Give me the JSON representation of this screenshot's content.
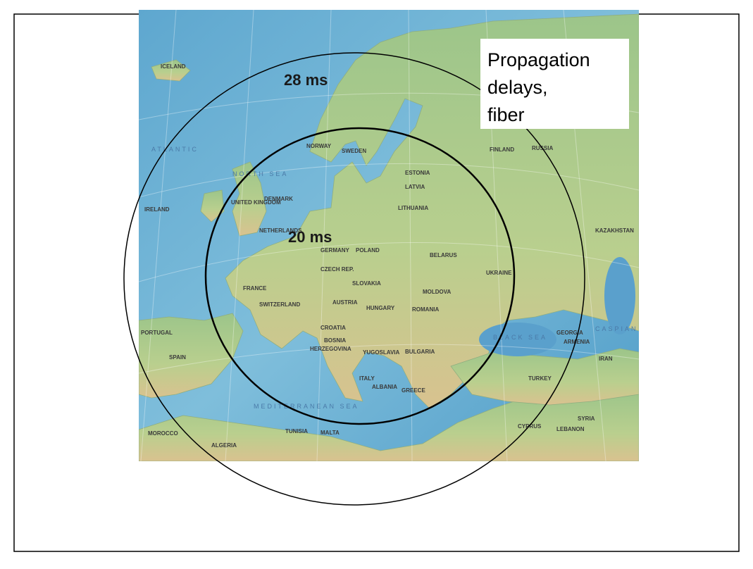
{
  "map": {
    "delay_labels": [
      "28 ms",
      "20 ms"
    ],
    "caption": [
      "Propagation",
      "delays,",
      "fiber"
    ],
    "place_labels": [
      "ICELAND",
      "ATLANTIC",
      "NORTH SEA",
      "NORWAY",
      "SWEDEN",
      "FINLAND",
      "RUSSIA",
      "ESTONIA",
      "LATVIA",
      "LITHUANIA",
      "DENMARK",
      "UNITED KINGDOM",
      "IRELAND",
      "NETHERLANDS",
      "GERMANY",
      "POLAND",
      "BELARUS",
      "KAZAKHSTAN",
      "CZECH REP.",
      "SLOVAKIA",
      "UKRAINE",
      "FRANCE",
      "SWITZERLAND",
      "AUSTRIA",
      "HUNGARY",
      "ROMANIA",
      "MOLDOVA",
      "CROATIA",
      "BOSNIA",
      "HERZEGOVINA",
      "YUGOSLAVIA",
      "BULGARIA",
      "ITALY",
      "ALBANIA",
      "GREECE",
      "TURKEY",
      "PORTUGAL",
      "SPAIN",
      "MOROCCO",
      "ALGERIA",
      "TUNISIA",
      "MALTA",
      "BLACK SEA",
      "GEORGIA",
      "ARMENIA",
      "IRAN",
      "SYRIA",
      "CYPRUS",
      "LEBANON",
      "CASPIAN SEA",
      "MEDITERRANEAN SEA"
    ]
  }
}
